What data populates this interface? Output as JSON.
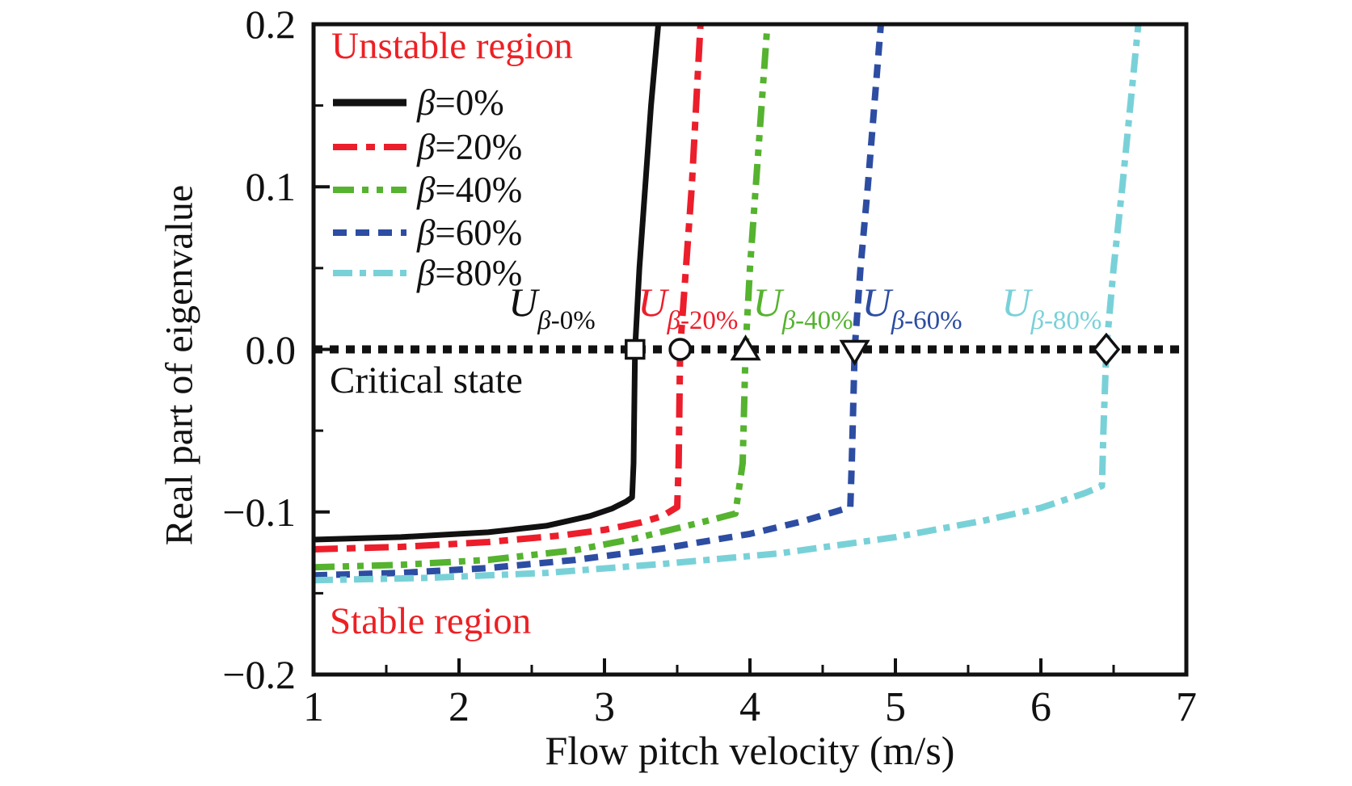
{
  "figure": {
    "background": "#ffffff",
    "accent_red": "#ed2024",
    "frame_color": "#111111"
  },
  "chart_data": {
    "type": "line",
    "title": "",
    "xlabel": "Flow pitch velocity (m/s)",
    "ylabel": "Real part of eigenvalue",
    "xlim": [
      1,
      7
    ],
    "ylim": [
      -0.2,
      0.2
    ],
    "grid": false,
    "legend_position": "top-left-inside",
    "x_major_ticks": [
      1,
      2,
      3,
      4,
      5,
      6,
      7
    ],
    "x_tick_labels": [
      "1",
      "2",
      "3",
      "4",
      "5",
      "6",
      "7"
    ],
    "x_minor_step": 0.5,
    "y_major_ticks": [
      0.2,
      0.1,
      0.0,
      -0.1,
      -0.2
    ],
    "y_tick_labels": [
      "0.2",
      "0.1",
      "0.0",
      "−0.1",
      "−0.2"
    ],
    "y_minor_step": 0.05,
    "critical_line": {
      "y": 0.0,
      "style": "dotted",
      "color": "#111111",
      "label": "Critical state"
    },
    "annotations": {
      "unstable": "Unstable region",
      "stable": "Stable region",
      "region_label_color": "#ed2024"
    },
    "series": [
      {
        "label": "β=0%",
        "color": "#111111",
        "dash": [],
        "line_width": 7,
        "marker": "square",
        "critical_velocity": 3.21,
        "u_label": {
          "main": "U",
          "sub": "β-0%",
          "anchor_x": 2.34,
          "align": "left"
        },
        "points": [
          [
            1,
            -0.117
          ],
          [
            1.6,
            -0.1155
          ],
          [
            2.2,
            -0.1125
          ],
          [
            2.6,
            -0.1085
          ],
          [
            2.9,
            -0.1025
          ],
          [
            3.05,
            -0.098
          ],
          [
            3.15,
            -0.0935
          ],
          [
            3.19,
            -0.091
          ],
          [
            3.2,
            -0.07
          ],
          [
            3.21,
            0.0
          ],
          [
            3.24,
            0.05
          ],
          [
            3.28,
            0.1
          ],
          [
            3.32,
            0.15
          ],
          [
            3.37,
            0.2
          ]
        ]
      },
      {
        "label": "β=20%",
        "color": "#ec1e2b",
        "dash": [
          30,
          11,
          11,
          11
        ],
        "line_width": 8,
        "marker": "circle",
        "critical_velocity": 3.52,
        "u_label": {
          "main": "U",
          "sub": "β-20%",
          "anchor_x": 3.23,
          "align": "left"
        },
        "points": [
          [
            1,
            -0.123
          ],
          [
            1.6,
            -0.1215
          ],
          [
            2.2,
            -0.1185
          ],
          [
            2.7,
            -0.1145
          ],
          [
            3.0,
            -0.111
          ],
          [
            3.25,
            -0.1065
          ],
          [
            3.4,
            -0.1025
          ],
          [
            3.5,
            -0.097
          ],
          [
            3.51,
            -0.07
          ],
          [
            3.52,
            0.0
          ],
          [
            3.56,
            0.05
          ],
          [
            3.6,
            0.1
          ],
          [
            3.66,
            0.2
          ]
        ]
      },
      {
        "label": "β=40%",
        "color": "#55b32f",
        "dash": [
          26,
          10,
          8,
          10,
          8,
          10
        ],
        "line_width": 8,
        "marker": "triangle-up",
        "critical_velocity": 3.97,
        "u_label": {
          "main": "U",
          "sub": "β-40%",
          "anchor_x": 4.02,
          "align": "left"
        },
        "points": [
          [
            1,
            -0.134
          ],
          [
            1.6,
            -0.1325
          ],
          [
            2.2,
            -0.1295
          ],
          [
            2.8,
            -0.1235
          ],
          [
            3.2,
            -0.1165
          ],
          [
            3.5,
            -0.11
          ],
          [
            3.75,
            -0.1045
          ],
          [
            3.9,
            -0.101
          ],
          [
            3.95,
            -0.07
          ],
          [
            3.97,
            0.0
          ],
          [
            4.0,
            0.05
          ],
          [
            4.04,
            0.1
          ],
          [
            4.12,
            0.2
          ]
        ]
      },
      {
        "label": "β=60%",
        "color": "#2d4da2",
        "dash": [
          17,
          11
        ],
        "line_width": 8,
        "marker": "triangle-down",
        "critical_velocity": 4.72,
        "u_label": {
          "main": "U",
          "sub": "β-60%",
          "anchor_x": 4.77,
          "align": "left"
        },
        "points": [
          [
            1,
            -0.139
          ],
          [
            1.6,
            -0.1375
          ],
          [
            2.2,
            -0.1345
          ],
          [
            2.8,
            -0.1295
          ],
          [
            3.4,
            -0.1225
          ],
          [
            4.0,
            -0.1135
          ],
          [
            4.35,
            -0.106
          ],
          [
            4.6,
            -0.0995
          ],
          [
            4.69,
            -0.097
          ],
          [
            4.7,
            -0.07
          ],
          [
            4.72,
            0.0
          ],
          [
            4.76,
            0.05
          ],
          [
            4.81,
            0.1
          ],
          [
            4.9,
            0.2
          ]
        ]
      },
      {
        "label": "β=80%",
        "color": "#79d1d8",
        "dash": [
          24,
          9,
          8,
          9
        ],
        "line_width": 8,
        "marker": "diamond",
        "critical_velocity": 6.45,
        "u_label": {
          "main": "U",
          "sub": "β-80%",
          "anchor_x": 5.73,
          "align": "left"
        },
        "points": [
          [
            1,
            -0.142
          ],
          [
            1.8,
            -0.1405
          ],
          [
            2.6,
            -0.1375
          ],
          [
            3.4,
            -0.132
          ],
          [
            4.2,
            -0.1255
          ],
          [
            5.0,
            -0.1155
          ],
          [
            5.6,
            -0.1055
          ],
          [
            6.0,
            -0.0975
          ],
          [
            6.3,
            -0.0885
          ],
          [
            6.42,
            -0.084
          ],
          [
            6.43,
            -0.05
          ],
          [
            6.45,
            0.0
          ],
          [
            6.5,
            0.05
          ],
          [
            6.56,
            0.1
          ],
          [
            6.67,
            0.2
          ]
        ]
      }
    ]
  }
}
